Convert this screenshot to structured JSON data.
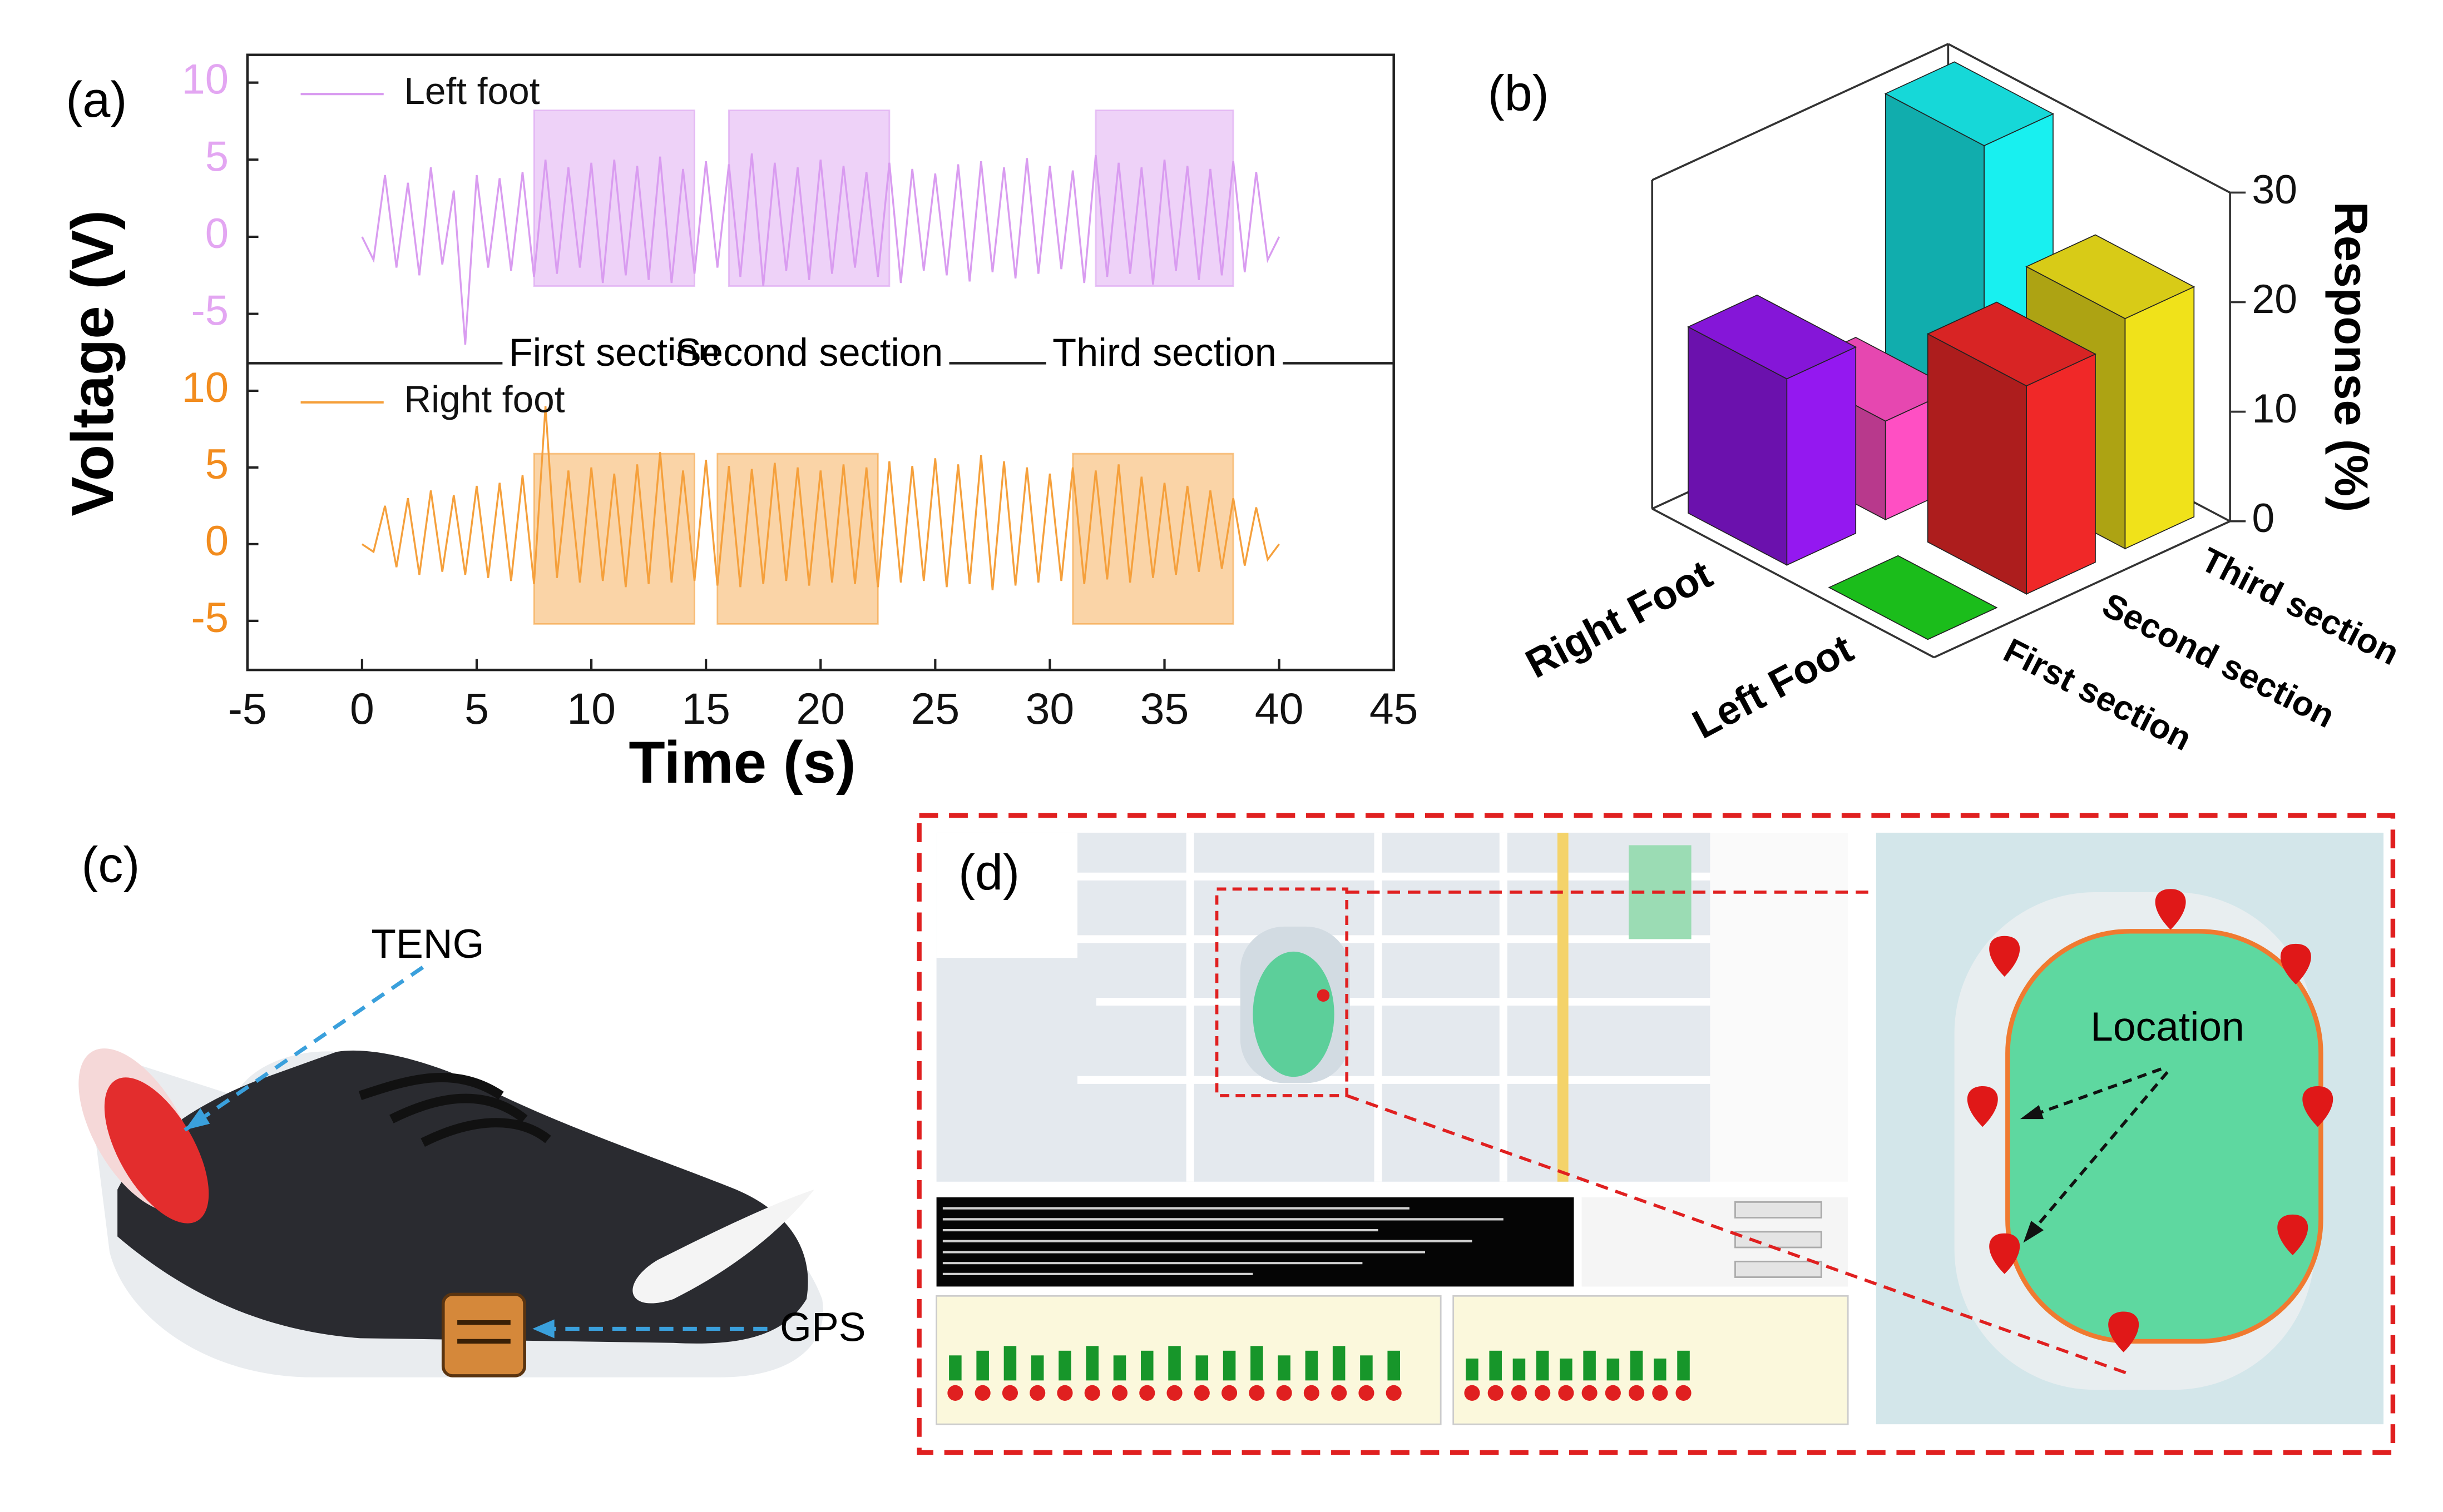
{
  "chart_data": [
    {
      "type": "line",
      "panel_label": "(a)",
      "ylabel": "Voltage (V)",
      "xlim": [
        -5,
        45
      ],
      "ylim": [
        -8.2,
        11.8
      ],
      "yticks": [
        -5,
        0,
        5,
        10
      ],
      "tick_color": "#e3a6f2",
      "x": [
        0,
        0.5,
        1,
        1.5,
        2,
        2.5,
        3,
        3.5,
        4,
        4.5,
        5,
        5.5,
        6,
        6.5,
        7,
        7.5,
        8,
        8.5,
        9,
        9.5,
        10,
        10.5,
        11,
        11.5,
        12,
        12.5,
        13,
        13.5,
        14,
        14.5,
        15,
        15.5,
        16,
        16.5,
        17,
        17.5,
        18,
        18.5,
        19,
        19.5,
        20,
        20.5,
        21,
        21.5,
        22,
        22.5,
        23,
        23.5,
        24,
        24.5,
        25,
        25.5,
        26,
        26.5,
        27,
        27.5,
        28,
        28.5,
        29,
        29.5,
        30,
        30.5,
        31,
        31.5,
        32,
        32.5,
        33,
        33.5,
        34,
        34.5,
        35,
        35.5,
        36,
        36.5,
        37,
        37.5,
        38,
        38.5,
        39,
        39.5,
        40
      ],
      "series": [
        {
          "name": "Left foot",
          "color": "#d99cf0",
          "values": [
            0,
            -1.5,
            4,
            -2,
            3.5,
            -2.5,
            4.5,
            -1.8,
            3,
            -7,
            4,
            -2,
            3.8,
            -2.2,
            4.2,
            -2.6,
            5,
            -2.4,
            4.5,
            -2,
            4.8,
            -3,
            5,
            -2.5,
            4.6,
            -2.8,
            5.2,
            -3,
            4.4,
            -2.4,
            4.9,
            -2,
            4.7,
            -2.6,
            5.4,
            -3.2,
            4.8,
            -2.2,
            4.5,
            -2.8,
            5,
            -2.4,
            4.6,
            -2,
            4.2,
            -2.6,
            4.8,
            -3,
            4.4,
            -2.2,
            4.1,
            -2.5,
            4.7,
            -2.9,
            4.9,
            -2.3,
            4.5,
            -2.7,
            5.1,
            -2.4,
            4.6,
            -2.1,
            4.3,
            -3,
            5.3,
            -2.6,
            4.8,
            -2.4,
            4.5,
            -3.1,
            5,
            -2.2,
            4.6,
            -2.8,
            4.4,
            -2.5,
            4.9,
            -2.3,
            4.2,
            -1.5,
            0
          ]
        }
      ],
      "sections": [
        [
          7.5,
          14.5
        ],
        [
          16,
          23
        ],
        [
          32,
          38
        ]
      ],
      "section_ylim": [
        -3.2,
        8.2
      ],
      "section_labels": [
        "First section",
        "Second section",
        "Third section"
      ]
    },
    {
      "type": "line",
      "xlabel": "Time (s)",
      "xlim": [
        -5,
        45
      ],
      "xticks": [
        -5,
        0,
        5,
        10,
        15,
        20,
        25,
        30,
        35,
        40,
        45
      ],
      "ylim": [
        -8.2,
        11.8
      ],
      "yticks": [
        -5,
        0,
        5,
        10
      ],
      "tick_color": "#f28c1e",
      "x": [
        0,
        0.5,
        1,
        1.5,
        2,
        2.5,
        3,
        3.5,
        4,
        4.5,
        5,
        5.5,
        6,
        6.5,
        7,
        7.5,
        8,
        8.5,
        9,
        9.5,
        10,
        10.5,
        11,
        11.5,
        12,
        12.5,
        13,
        13.5,
        14,
        14.5,
        15,
        15.5,
        16,
        16.5,
        17,
        17.5,
        18,
        18.5,
        19,
        19.5,
        20,
        20.5,
        21,
        21.5,
        22,
        22.5,
        23,
        23.5,
        24,
        24.5,
        25,
        25.5,
        26,
        26.5,
        27,
        27.5,
        28,
        28.5,
        29,
        29.5,
        30,
        30.5,
        31,
        31.5,
        32,
        32.5,
        33,
        33.5,
        34,
        34.5,
        35,
        35.5,
        36,
        36.5,
        37,
        37.5,
        38,
        38.5,
        39,
        39.5,
        40
      ],
      "series": [
        {
          "name": "Right foot",
          "color": "#f5a03c",
          "values": [
            0,
            -0.5,
            2.5,
            -1.5,
            3,
            -2,
            3.5,
            -1.8,
            3.2,
            -2,
            3.8,
            -2.2,
            4,
            -2.4,
            4.5,
            -2.6,
            9,
            -2.2,
            4.8,
            -2.5,
            5,
            -2.4,
            4.6,
            -2.8,
            5.2,
            -2.6,
            6,
            -2.5,
            4.8,
            -2.4,
            5.5,
            -2.7,
            5.1,
            -2.8,
            4.9,
            -2.6,
            5.3,
            -2.4,
            5,
            -2.7,
            4.8,
            -2.5,
            5.2,
            -2.6,
            5,
            -2.8,
            5.4,
            -2.5,
            5.1,
            -2.4,
            5.6,
            -2.8,
            5.2,
            -2.6,
            5.8,
            -3,
            5.4,
            -2.7,
            5,
            -2.5,
            4.6,
            -2.4,
            5,
            -2.6,
            4.8,
            -2.3,
            5.2,
            -2.5,
            4.4,
            -2.2,
            4,
            -2,
            3.8,
            -1.8,
            3.5,
            -1.6,
            3,
            -1.4,
            2.4,
            -1,
            0
          ]
        }
      ],
      "sections": [
        [
          7.5,
          14.5
        ],
        [
          15.5,
          22.5
        ],
        [
          31,
          38
        ]
      ],
      "section_ylim": [
        -5.2,
        5.9
      ]
    },
    {
      "type": "bar3d",
      "panel_label": "(b)",
      "zlabel": "Response (%)",
      "categories": [
        "Left Foot",
        "Right Foot"
      ],
      "sections": [
        "First section",
        "Second section",
        "Third section"
      ],
      "values": [
        [
          0,
          19,
          21
        ],
        [
          17,
          9,
          30
        ]
      ],
      "colors": [
        [
          "#1ed21e",
          "#f02828",
          "#f0e21a"
        ],
        [
          "#9418f0",
          "#ff4fc3",
          "#18f0f0"
        ]
      ],
      "zlim": [
        0,
        30
      ],
      "zticks": [
        0,
        10,
        20,
        30
      ]
    }
  ],
  "photo": {
    "panel_label": "(c)",
    "labels": [
      "TENG",
      "GPS"
    ]
  },
  "screenshot": {
    "panel_label": "(d)",
    "annotation": "Location"
  }
}
